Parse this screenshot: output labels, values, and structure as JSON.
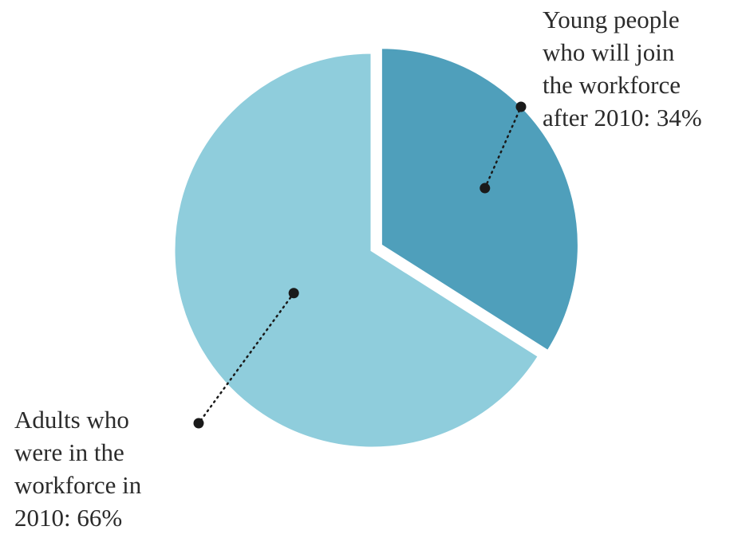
{
  "chart_data": {
    "type": "pie",
    "title": "",
    "slices": [
      {
        "label": "Young people\nwho will join\nthe workforce\nafter 2010: 34%",
        "value": 34,
        "color": "#4f9fbb"
      },
      {
        "label": "Adults who\nwere in the\nworkforce in\n2010: 66%",
        "value": 66,
        "color": "#8fcddc"
      }
    ],
    "legend": "none",
    "start": "12 o'clock",
    "direction": "clockwise",
    "exploded_slice": "Young people who will join the workforce after 2010: 34%"
  }
}
